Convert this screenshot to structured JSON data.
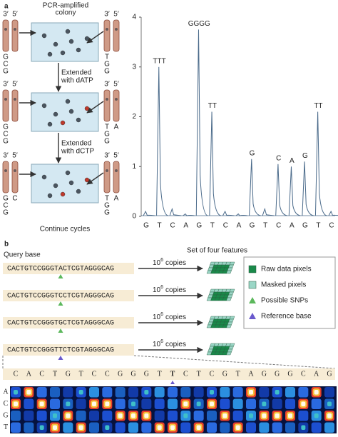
{
  "panel_a": {
    "label": "a",
    "colony_label": [
      "PCR-amplified",
      "colony"
    ],
    "strand_ends": [
      "3′",
      "5′"
    ],
    "rows": [
      {
        "left": [
          "G",
          "C",
          "G"
        ],
        "right": [
          "T",
          "G",
          "G"
        ]
      },
      {
        "left": [
          "G",
          "C",
          "G"
        ],
        "right": [
          "T",
          "G",
          "G"
        ],
        "right_added": "A"
      },
      {
        "left": [
          "G",
          "C",
          "G"
        ],
        "left_added": "C",
        "right": [
          "T",
          "G",
          "G"
        ],
        "right_added": "A"
      }
    ],
    "steps": [
      [
        "Extended",
        "with dATP"
      ],
      [
        "Extended",
        "with dCTP"
      ]
    ],
    "footer": "Continue cycles"
  },
  "chart_data": {
    "type": "line",
    "categories": [
      "G",
      "T",
      "C",
      "A",
      "G",
      "T",
      "C",
      "A",
      "G",
      "T",
      "C",
      "A",
      "G",
      "T",
      "C"
    ],
    "category_colors": {
      "G": "#555555",
      "T": "#3a5fa8",
      "C": "#c0392b",
      "A": "#3a9a4a"
    },
    "values": [
      0.1,
      3.0,
      0.15,
      0.05,
      3.75,
      2.1,
      0.1,
      0.05,
      1.15,
      0.15,
      1.05,
      1.0,
      1.1,
      2.1,
      0.1
    ],
    "peak_labels": [
      null,
      "TTT",
      null,
      null,
      "GGGG",
      "TT",
      null,
      null,
      "G",
      null,
      "C",
      "A",
      "G",
      "TT",
      null
    ],
    "ylim": [
      0,
      4
    ],
    "yticks": [
      0,
      1,
      2,
      3,
      4
    ],
    "color": "#4a6a8a"
  },
  "panel_b": {
    "label": "b",
    "query_label": "Query base",
    "queries": [
      {
        "prefix": "CACTGTCCGGGT",
        "base": "A",
        "suffix": "CTCGTAGGGCAG"
      },
      {
        "prefix": "CACTGTCCGGGT",
        "base": "C",
        "suffix": "CTCGTAGGGCAG"
      },
      {
        "prefix": "CACTGTCCGGGT",
        "base": "G",
        "suffix": "CTCGTAGGGCAG"
      },
      {
        "prefix": "CACTGTCCGGGT",
        "base": "T",
        "suffix": "CTCGTAGGGCAG"
      }
    ],
    "copies": {
      "base": "10",
      "exponent": "6",
      "unit": "copies"
    },
    "features_title": "Set of four features",
    "legend": [
      {
        "label": "Raw data pixels",
        "color": "#1a8a4a"
      },
      {
        "label": "Masked pixels",
        "color": "#9ad6c6"
      },
      {
        "label": "Possible SNPs",
        "color": "#5cb85c"
      },
      {
        "label": "Reference base",
        "color": "#6a5acd"
      }
    ],
    "read": [
      "C",
      "A",
      "C",
      "T",
      "G",
      "T",
      "C",
      "C",
      "G",
      "G",
      "G",
      "T",
      "T",
      "C",
      "T",
      "C",
      "G",
      "T",
      "A",
      "G",
      "G",
      "G",
      "C",
      "A",
      "G"
    ],
    "channels": [
      "A",
      "C",
      "G",
      "T"
    ]
  }
}
